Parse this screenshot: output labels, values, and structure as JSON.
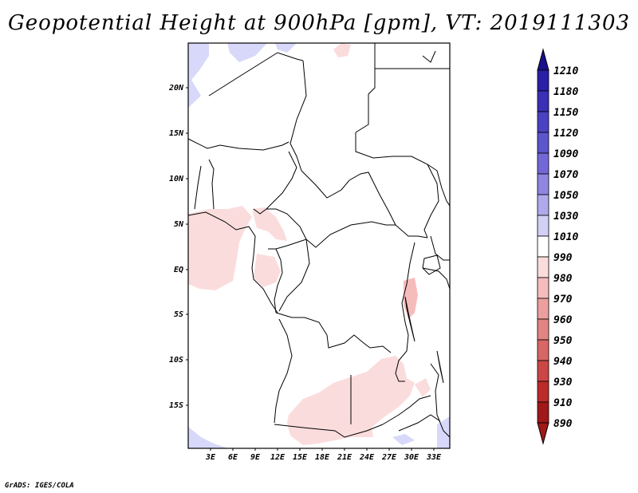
{
  "title": "Geopotential Height at 900hPa [gpm], VT: 2019111303",
  "credit": "GrADS: IGES/COLA",
  "map": {
    "lat_labels": [
      "20N",
      "15N",
      "10N",
      "5N",
      "EQ",
      "5S",
      "10S",
      "15S"
    ],
    "lon_labels": [
      "3E",
      "6E",
      "9E",
      "12E",
      "15E",
      "18E",
      "21E",
      "24E",
      "27E",
      "30E",
      "33E"
    ]
  },
  "colorbar": {
    "levels": [
      "1210",
      "1180",
      "1150",
      "1120",
      "1090",
      "1070",
      "1050",
      "1030",
      "1010",
      "990",
      "980",
      "970",
      "960",
      "950",
      "940",
      "930",
      "910",
      "890"
    ],
    "colors": [
      "#1a0f8c",
      "#2a1fa5",
      "#3a2fb5",
      "#4a42c2",
      "#5c55cc",
      "#7368d8",
      "#8f86e2",
      "#b0a9ec",
      "#d3d0f6",
      "#ffffff",
      "#fbdcdc",
      "#f6bcbc",
      "#ec9f9f",
      "#e28484",
      "#d86666",
      "#cc4646",
      "#bc2a2a",
      "#a01818"
    ]
  }
}
